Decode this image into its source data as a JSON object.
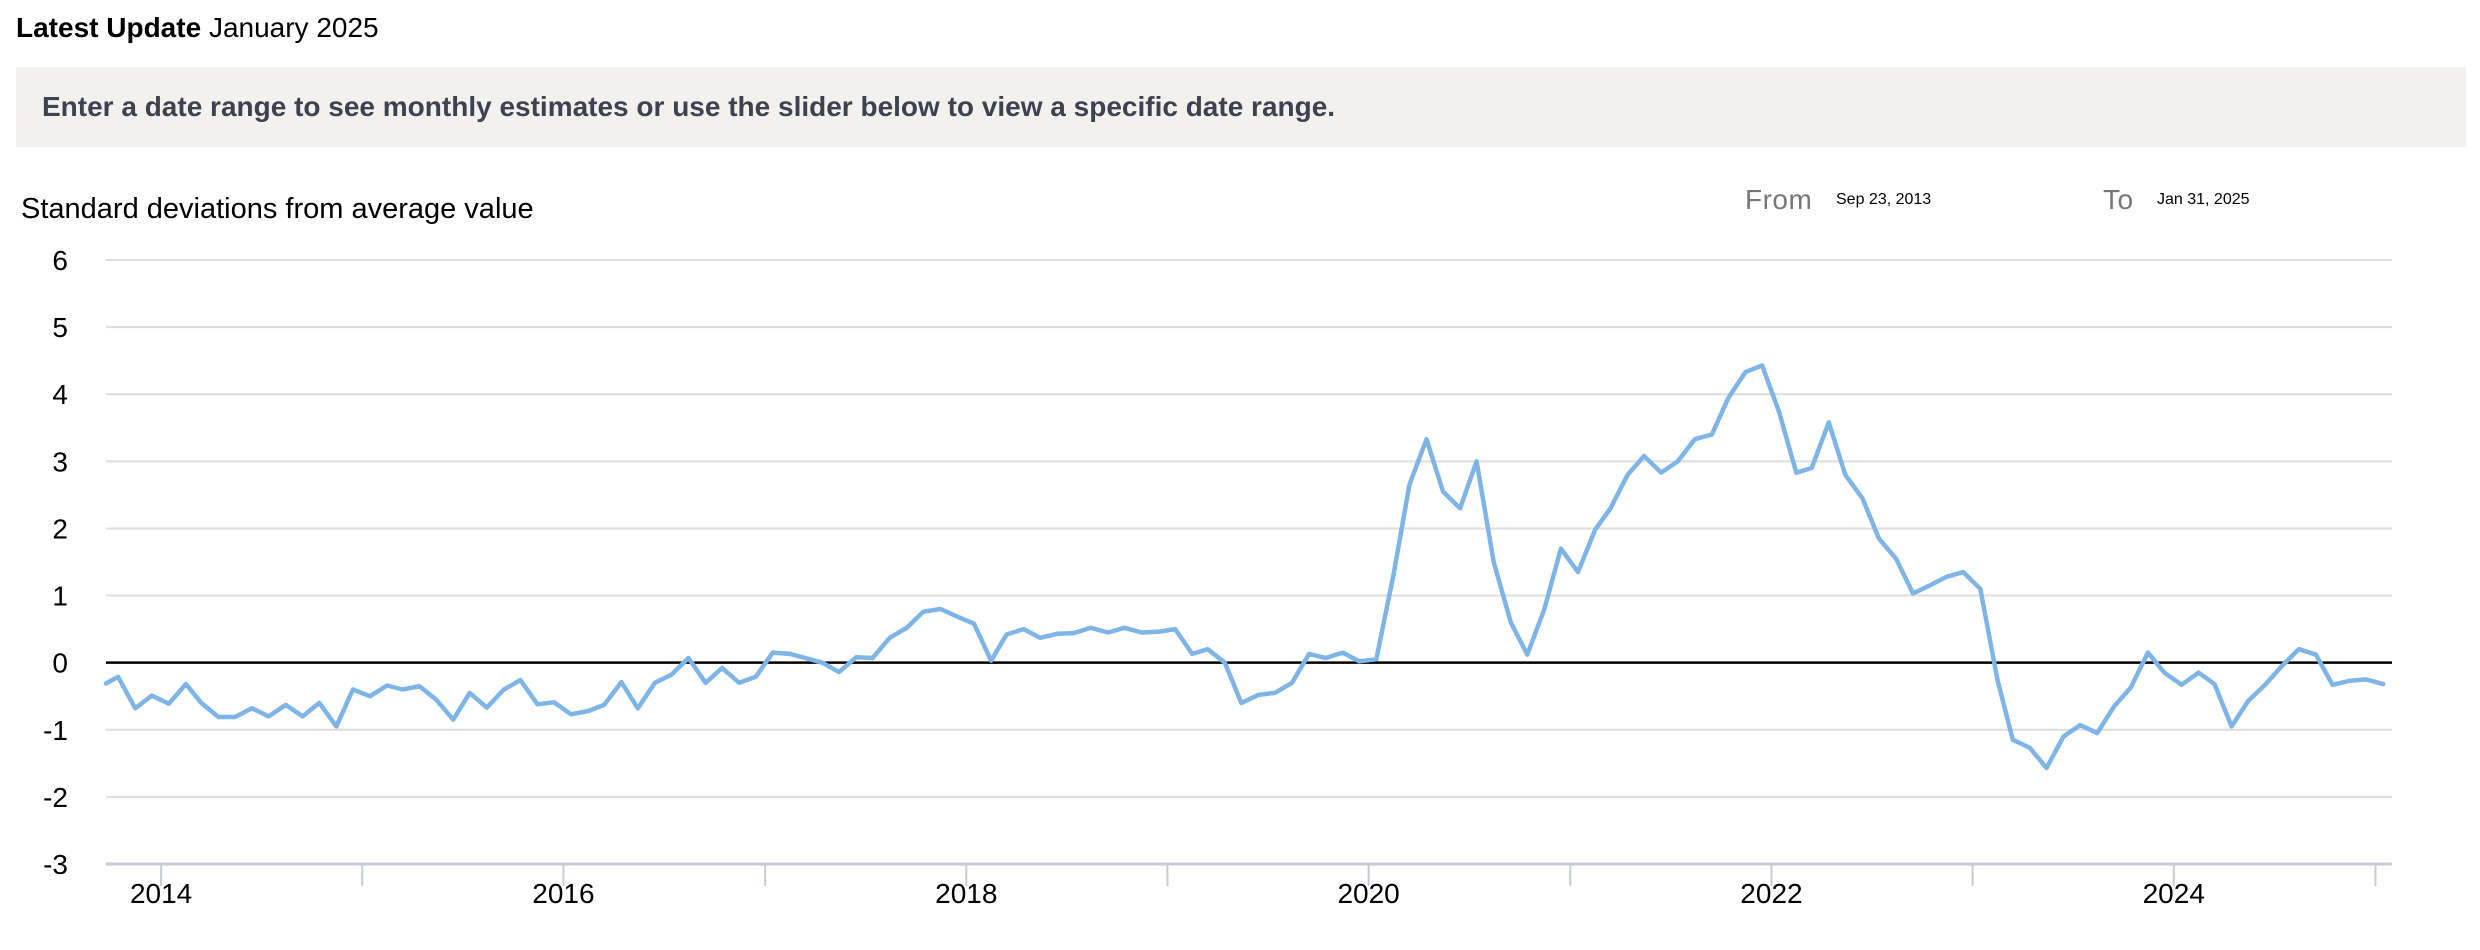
{
  "header": {
    "label": "Latest Update",
    "value": "January 2025"
  },
  "notice": "Enter a date range to see monthly estimates or use the slider below to view a specific date range.",
  "range": {
    "from_label": "From",
    "from_value": "Sep 23, 2013",
    "to_label": "To",
    "to_value": "Jan 31, 2025"
  },
  "colors": {
    "line": "#7eb4e6",
    "zero": "#000000",
    "grid": "#dddddd",
    "notice_bg": "#f2f1ed"
  },
  "chart_data": {
    "type": "line",
    "ylabel": "Standard deviations from average value",
    "ylim": [
      -3,
      6
    ],
    "yticks": [
      6,
      5,
      4,
      3,
      2,
      1,
      0,
      -1,
      -2,
      -3
    ],
    "xrange": [
      "2013-09-23",
      "2025-01-31"
    ],
    "xticks": [
      "2014",
      "2016",
      "2018",
      "2020",
      "2022",
      "2024"
    ],
    "grid": true,
    "series": [
      {
        "x": [
          "2013-09",
          "2013-10",
          "2013-11",
          "2013-12",
          "2014-01",
          "2014-02",
          "2014-03",
          "2014-04",
          "2014-05",
          "2014-06",
          "2014-07",
          "2014-08",
          "2014-09",
          "2014-10",
          "2014-11",
          "2014-12",
          "2015-01",
          "2015-02",
          "2015-03",
          "2015-04",
          "2015-05",
          "2015-06",
          "2015-07",
          "2015-08",
          "2015-09",
          "2015-10",
          "2015-11",
          "2015-12",
          "2016-01",
          "2016-02",
          "2016-03",
          "2016-04",
          "2016-05",
          "2016-06",
          "2016-07",
          "2016-08",
          "2016-09",
          "2016-10",
          "2016-11",
          "2016-12",
          "2017-01",
          "2017-02",
          "2017-03",
          "2017-04",
          "2017-05",
          "2017-06",
          "2017-07",
          "2017-08",
          "2017-09",
          "2017-10",
          "2017-11",
          "2017-12",
          "2018-01",
          "2018-02",
          "2018-03",
          "2018-04",
          "2018-05",
          "2018-06",
          "2018-07",
          "2018-08",
          "2018-09",
          "2018-10",
          "2018-11",
          "2018-12",
          "2019-01",
          "2019-02",
          "2019-03",
          "2019-04",
          "2019-05",
          "2019-06",
          "2019-07",
          "2019-08",
          "2019-09",
          "2019-10",
          "2019-11",
          "2019-12",
          "2020-01",
          "2020-02",
          "2020-03",
          "2020-04",
          "2020-05",
          "2020-06",
          "2020-07",
          "2020-08",
          "2020-09",
          "2020-10",
          "2020-11",
          "2020-12",
          "2021-01",
          "2021-02",
          "2021-03",
          "2021-04",
          "2021-05",
          "2021-06",
          "2021-07",
          "2021-08",
          "2021-09",
          "2021-10",
          "2021-11",
          "2021-12",
          "2022-01",
          "2022-02",
          "2022-03",
          "2022-04",
          "2022-05",
          "2022-06",
          "2022-07",
          "2022-08",
          "2022-09",
          "2022-10",
          "2022-11",
          "2022-12",
          "2023-01",
          "2023-02",
          "2023-03",
          "2023-04",
          "2023-05",
          "2023-06",
          "2023-07",
          "2023-08",
          "2023-09",
          "2023-10",
          "2023-11",
          "2023-12",
          "2024-01",
          "2024-02",
          "2024-03",
          "2024-04",
          "2024-05",
          "2024-06",
          "2024-07",
          "2024-08",
          "2024-09",
          "2024-10",
          "2024-11",
          "2024-12",
          "2025-01"
        ],
        "y": [
          -0.31,
          -0.21,
          -0.68,
          -0.49,
          -0.61,
          -0.32,
          -0.6,
          -0.81,
          -0.81,
          -0.68,
          -0.8,
          -0.63,
          -0.8,
          -0.6,
          -0.95,
          -0.4,
          -0.5,
          -0.34,
          -0.4,
          -0.35,
          -0.55,
          -0.85,
          -0.45,
          -0.67,
          -0.4,
          -0.26,
          -0.62,
          -0.59,
          -0.77,
          -0.72,
          -0.63,
          -0.29,
          -0.68,
          -0.3,
          -0.18,
          0.07,
          -0.3,
          -0.08,
          -0.3,
          -0.21,
          0.15,
          0.13,
          0.07,
          0.0,
          -0.14,
          0.08,
          0.07,
          0.37,
          0.52,
          0.76,
          0.8,
          0.69,
          0.58,
          0.03,
          0.42,
          0.5,
          0.37,
          0.43,
          0.44,
          0.52,
          0.45,
          0.52,
          0.45,
          0.46,
          0.5,
          0.13,
          0.2,
          0.0,
          -0.6,
          -0.48,
          -0.45,
          -0.3,
          0.13,
          0.07,
          0.15,
          0.02,
          0.05,
          1.3,
          2.65,
          3.33,
          2.55,
          2.3,
          3.0,
          1.5,
          0.6,
          0.12,
          0.8,
          1.7,
          1.35,
          1.98,
          2.3,
          2.8,
          3.08,
          2.83,
          3.0,
          3.33,
          3.4,
          3.95,
          4.33,
          4.43,
          3.73,
          2.83,
          2.9,
          3.58,
          2.8,
          2.45,
          1.85,
          1.55,
          1.03,
          1.15,
          1.28,
          1.35,
          1.1,
          -0.25,
          -1.15,
          -1.27,
          -1.57,
          -1.1,
          -0.93,
          -1.05,
          -0.65,
          -0.37,
          0.15,
          -0.15,
          -0.33,
          -0.15,
          -0.32,
          -0.95,
          -0.57,
          -0.33,
          -0.05,
          0.2,
          0.12,
          -0.33,
          -0.27,
          -0.25,
          -0.32
        ]
      }
    ]
  }
}
